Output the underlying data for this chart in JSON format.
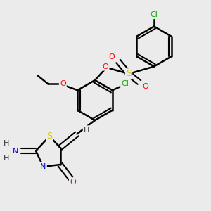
{
  "bg_color": "#ebebeb",
  "atom_colors": {
    "O": "#ff0000",
    "N": "#0000cd",
    "S": "#cccc00",
    "Cl": "#00aa00",
    "H": "#333333",
    "C": "#000000"
  }
}
